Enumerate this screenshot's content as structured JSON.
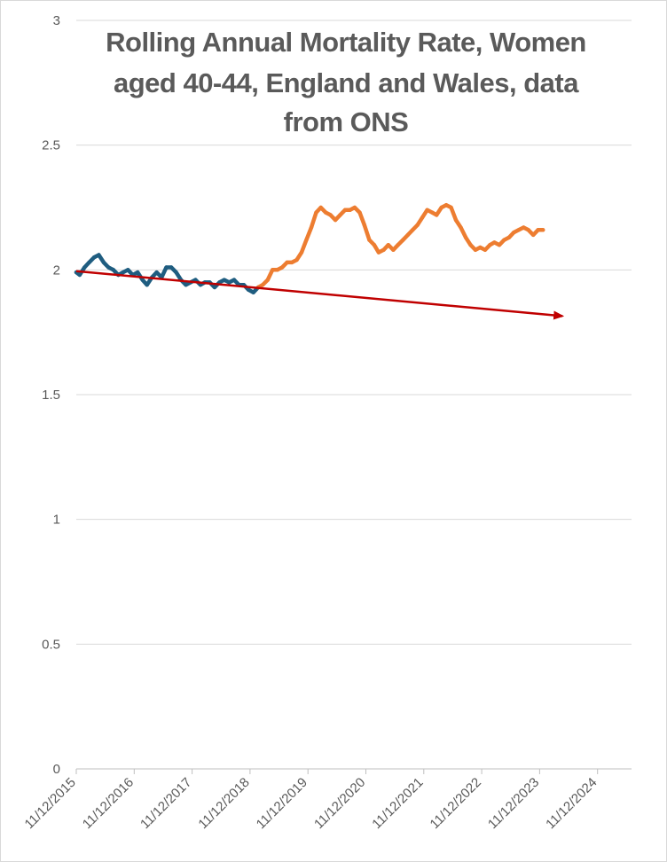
{
  "chart_data": {
    "type": "line",
    "title_lines": [
      "Rolling Annual Mortality Rate, Women",
      "aged 40-44, England and Wales, data",
      "from ONS"
    ],
    "xlabel": "",
    "ylabel": "",
    "ylim": [
      0,
      3
    ],
    "y_ticks": [
      "0",
      "0.5",
      "1",
      "1.5",
      "2",
      "2.5",
      "3"
    ],
    "x_ticks": [
      "11/12/2015",
      "11/12/2016",
      "11/12/2017",
      "11/12/2018",
      "11/12/2019",
      "11/12/2020",
      "11/12/2021",
      "11/12/2022",
      "11/12/2023",
      "11/12/2024"
    ],
    "grid": true,
    "series": [
      {
        "color": "#1f5d80",
        "points": [
          [
            "2015-12-11",
            1.99
          ],
          [
            "2016-01-01",
            1.98
          ],
          [
            "2016-02-01",
            2.01
          ],
          [
            "2016-03-01",
            2.03
          ],
          [
            "2016-04-01",
            2.05
          ],
          [
            "2016-05-01",
            2.06
          ],
          [
            "2016-06-01",
            2.03
          ],
          [
            "2016-07-01",
            2.01
          ],
          [
            "2016-08-01",
            2.0
          ],
          [
            "2016-09-01",
            1.98
          ],
          [
            "2016-10-01",
            1.99
          ],
          [
            "2016-11-01",
            2.0
          ],
          [
            "2016-12-01",
            1.98
          ],
          [
            "2017-01-01",
            1.99
          ],
          [
            "2017-02-01",
            1.96
          ],
          [
            "2017-03-01",
            1.94
          ],
          [
            "2017-04-01",
            1.97
          ],
          [
            "2017-05-01",
            1.99
          ],
          [
            "2017-06-01",
            1.97
          ],
          [
            "2017-07-01",
            2.01
          ],
          [
            "2017-08-01",
            2.01
          ],
          [
            "2017-09-01",
            1.99
          ],
          [
            "2017-10-01",
            1.96
          ],
          [
            "2017-11-01",
            1.94
          ],
          [
            "2017-12-01",
            1.95
          ],
          [
            "2018-01-01",
            1.96
          ],
          [
            "2018-02-01",
            1.94
          ],
          [
            "2018-03-01",
            1.95
          ],
          [
            "2018-04-01",
            1.95
          ],
          [
            "2018-05-01",
            1.93
          ],
          [
            "2018-06-01",
            1.95
          ],
          [
            "2018-07-01",
            1.96
          ],
          [
            "2018-08-01",
            1.95
          ],
          [
            "2018-09-01",
            1.96
          ],
          [
            "2018-10-01",
            1.94
          ],
          [
            "2018-11-01",
            1.94
          ],
          [
            "2018-12-01",
            1.92
          ],
          [
            "2019-01-01",
            1.91
          ],
          [
            "2019-02-01",
            1.93
          ]
        ]
      },
      {
        "color": "#ed7d31",
        "points": [
          [
            "2019-02-01",
            1.93
          ],
          [
            "2019-03-01",
            1.94
          ],
          [
            "2019-04-01",
            1.96
          ],
          [
            "2019-05-01",
            2.0
          ],
          [
            "2019-06-01",
            2.0
          ],
          [
            "2019-07-01",
            2.01
          ],
          [
            "2019-08-01",
            2.03
          ],
          [
            "2019-09-01",
            2.03
          ],
          [
            "2019-10-01",
            2.04
          ],
          [
            "2019-11-01",
            2.07
          ],
          [
            "2019-12-01",
            2.12
          ],
          [
            "2020-01-01",
            2.17
          ],
          [
            "2020-02-01",
            2.23
          ],
          [
            "2020-03-01",
            2.25
          ],
          [
            "2020-04-01",
            2.23
          ],
          [
            "2020-05-01",
            2.22
          ],
          [
            "2020-06-01",
            2.2
          ],
          [
            "2020-07-01",
            2.22
          ],
          [
            "2020-08-01",
            2.24
          ],
          [
            "2020-09-01",
            2.24
          ],
          [
            "2020-10-01",
            2.25
          ],
          [
            "2020-11-01",
            2.23
          ],
          [
            "2020-12-01",
            2.18
          ],
          [
            "2021-01-01",
            2.12
          ],
          [
            "2021-02-01",
            2.1
          ],
          [
            "2021-03-01",
            2.07
          ],
          [
            "2021-04-01",
            2.08
          ],
          [
            "2021-05-01",
            2.1
          ],
          [
            "2021-06-01",
            2.08
          ],
          [
            "2021-07-01",
            2.1
          ],
          [
            "2021-08-01",
            2.12
          ],
          [
            "2021-09-01",
            2.14
          ],
          [
            "2021-10-01",
            2.16
          ],
          [
            "2021-11-01",
            2.18
          ],
          [
            "2021-12-01",
            2.21
          ],
          [
            "2022-01-01",
            2.24
          ],
          [
            "2022-02-01",
            2.23
          ],
          [
            "2022-03-01",
            2.22
          ],
          [
            "2022-04-01",
            2.25
          ],
          [
            "2022-05-01",
            2.26
          ],
          [
            "2022-06-01",
            2.25
          ],
          [
            "2022-07-01",
            2.2
          ],
          [
            "2022-08-01",
            2.17
          ],
          [
            "2022-09-01",
            2.13
          ],
          [
            "2022-10-01",
            2.1
          ],
          [
            "2022-11-01",
            2.08
          ],
          [
            "2022-12-01",
            2.09
          ],
          [
            "2023-01-01",
            2.08
          ],
          [
            "2023-02-01",
            2.1
          ],
          [
            "2023-03-01",
            2.11
          ],
          [
            "2023-04-01",
            2.1
          ],
          [
            "2023-05-01",
            2.12
          ],
          [
            "2023-06-01",
            2.13
          ],
          [
            "2023-07-01",
            2.15
          ],
          [
            "2023-08-01",
            2.16
          ],
          [
            "2023-09-01",
            2.17
          ],
          [
            "2023-10-01",
            2.16
          ],
          [
            "2023-11-01",
            2.14
          ],
          [
            "2023-12-01",
            2.16
          ],
          [
            "2024-01-01",
            2.16
          ]
        ]
      }
    ],
    "trend_arrow": {
      "color": "#c00000",
      "from": [
        "2015-12-11",
        1.995
      ],
      "to": [
        "2024-01-01",
        1.815
      ]
    }
  }
}
